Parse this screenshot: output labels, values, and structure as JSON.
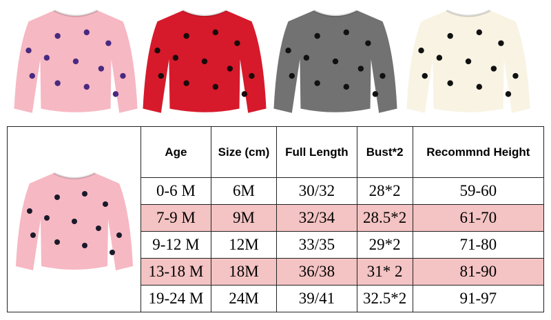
{
  "table": {
    "header": [
      "Age",
      "Size (cm)",
      "Full Length",
      "Bust*2",
      "Recommnd Height"
    ],
    "rows": [
      [
        "0-6 M",
        "6M",
        "30/32",
        "28*2",
        "59-60"
      ],
      [
        "7-9 M",
        "9M",
        "32/34",
        "28.5*2",
        "61-70"
      ],
      [
        "9-12 M",
        "12M",
        "33/35",
        "29*2",
        "71-80"
      ],
      [
        "13-18 M",
        "18M",
        "36/38",
        "31* 2",
        "81-90"
      ],
      [
        "19-24 M",
        "24M",
        "39/41",
        "32.5*2",
        "91-97"
      ]
    ]
  }
}
